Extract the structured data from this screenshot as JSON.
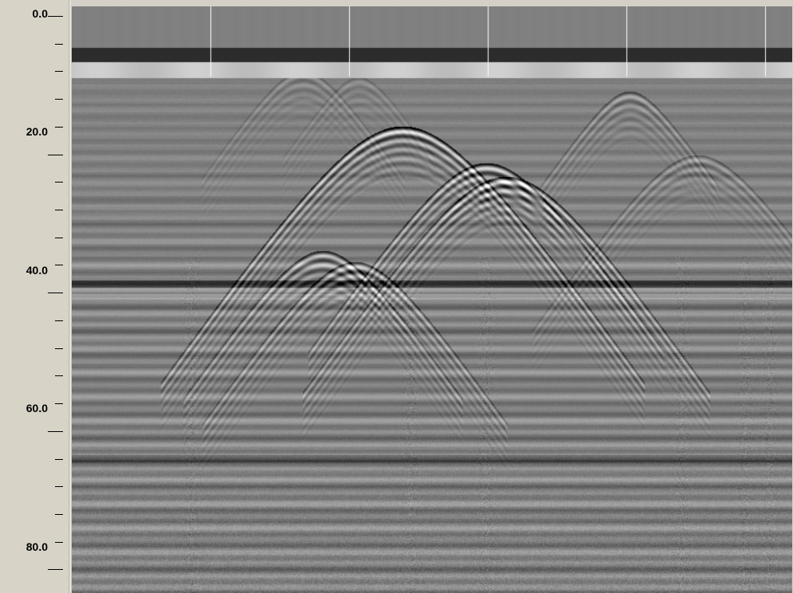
{
  "depth_scale": {
    "labels": [
      "0.0",
      "20.0",
      "40.0",
      "60.0",
      "80.0"
    ],
    "range": [
      0,
      85
    ],
    "major_step": 20,
    "minor_step": 4
  },
  "radargram": {
    "palette": "grayscale",
    "marker_count": 5,
    "features": [
      "horizontal-banding",
      "large-hyperbola-center",
      "small-hyperbola-left",
      "faint-hyperbolas-right",
      "vertical-noise-streaks"
    ]
  }
}
